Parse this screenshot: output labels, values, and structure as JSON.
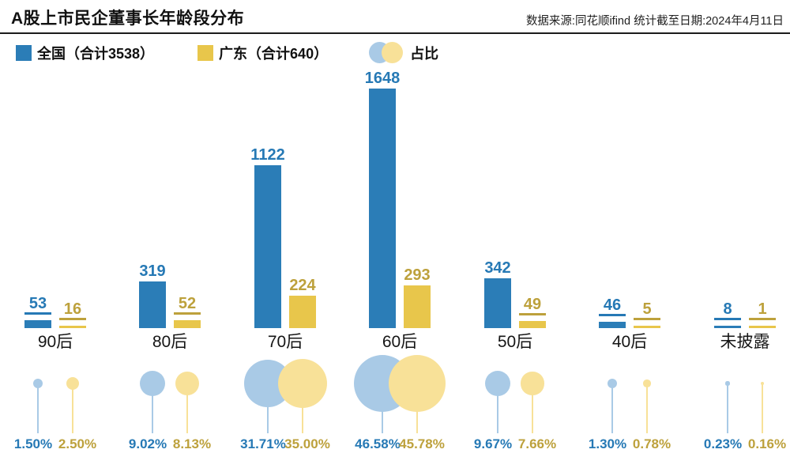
{
  "header": {
    "title": "A股上市民企董事长年龄段分布",
    "source": "数据来源:同花顺ifind  统计截至日期:2024年4月11日"
  },
  "legend": {
    "national_label": "全国（合计3538）",
    "guangdong_label": "广东（合计640）",
    "ratio_label": "占比"
  },
  "colors": {
    "national_bar": "#2b7db7",
    "guangdong_bar": "#e8c64b",
    "national_text": "#2679b5",
    "guangdong_text": "#bda13c",
    "national_bubble": "#a9cae6",
    "guangdong_bubble": "#f8e198",
    "category_text": "#151515"
  },
  "chart_data": {
    "type": "bar",
    "title": "A股上市民企董事长年龄段分布",
    "categories": [
      "90后",
      "80后",
      "70后",
      "60后",
      "50后",
      "40后",
      "未披露"
    ],
    "series": [
      {
        "name": "全国（合计3538）",
        "total": 3538,
        "values": [
          53,
          319,
          1122,
          1648,
          342,
          46,
          8
        ]
      },
      {
        "name": "广东（合计640）",
        "total": 640,
        "values": [
          16,
          52,
          224,
          293,
          49,
          5,
          1
        ]
      }
    ],
    "bubble_series": [
      {
        "name": "全国占比",
        "values_pct": [
          1.5,
          9.02,
          31.71,
          46.58,
          9.67,
          1.3,
          0.23
        ]
      },
      {
        "name": "广东占比",
        "values_pct": [
          2.5,
          8.13,
          35.0,
          45.78,
          7.66,
          0.78,
          0.16
        ]
      }
    ],
    "percent_labels": {
      "national": [
        "1.50%",
        "9.02%",
        "31.71%",
        "46.58%",
        "9.67%",
        "1.30%",
        "0.23%"
      ],
      "guangdong": [
        "2.50%",
        "8.13%",
        "35.00%",
        "45.78%",
        "7.66%",
        "0.78%",
        "0.16%"
      ]
    },
    "ylim": [
      0,
      1700
    ],
    "grid": false,
    "legend_position": "top"
  }
}
